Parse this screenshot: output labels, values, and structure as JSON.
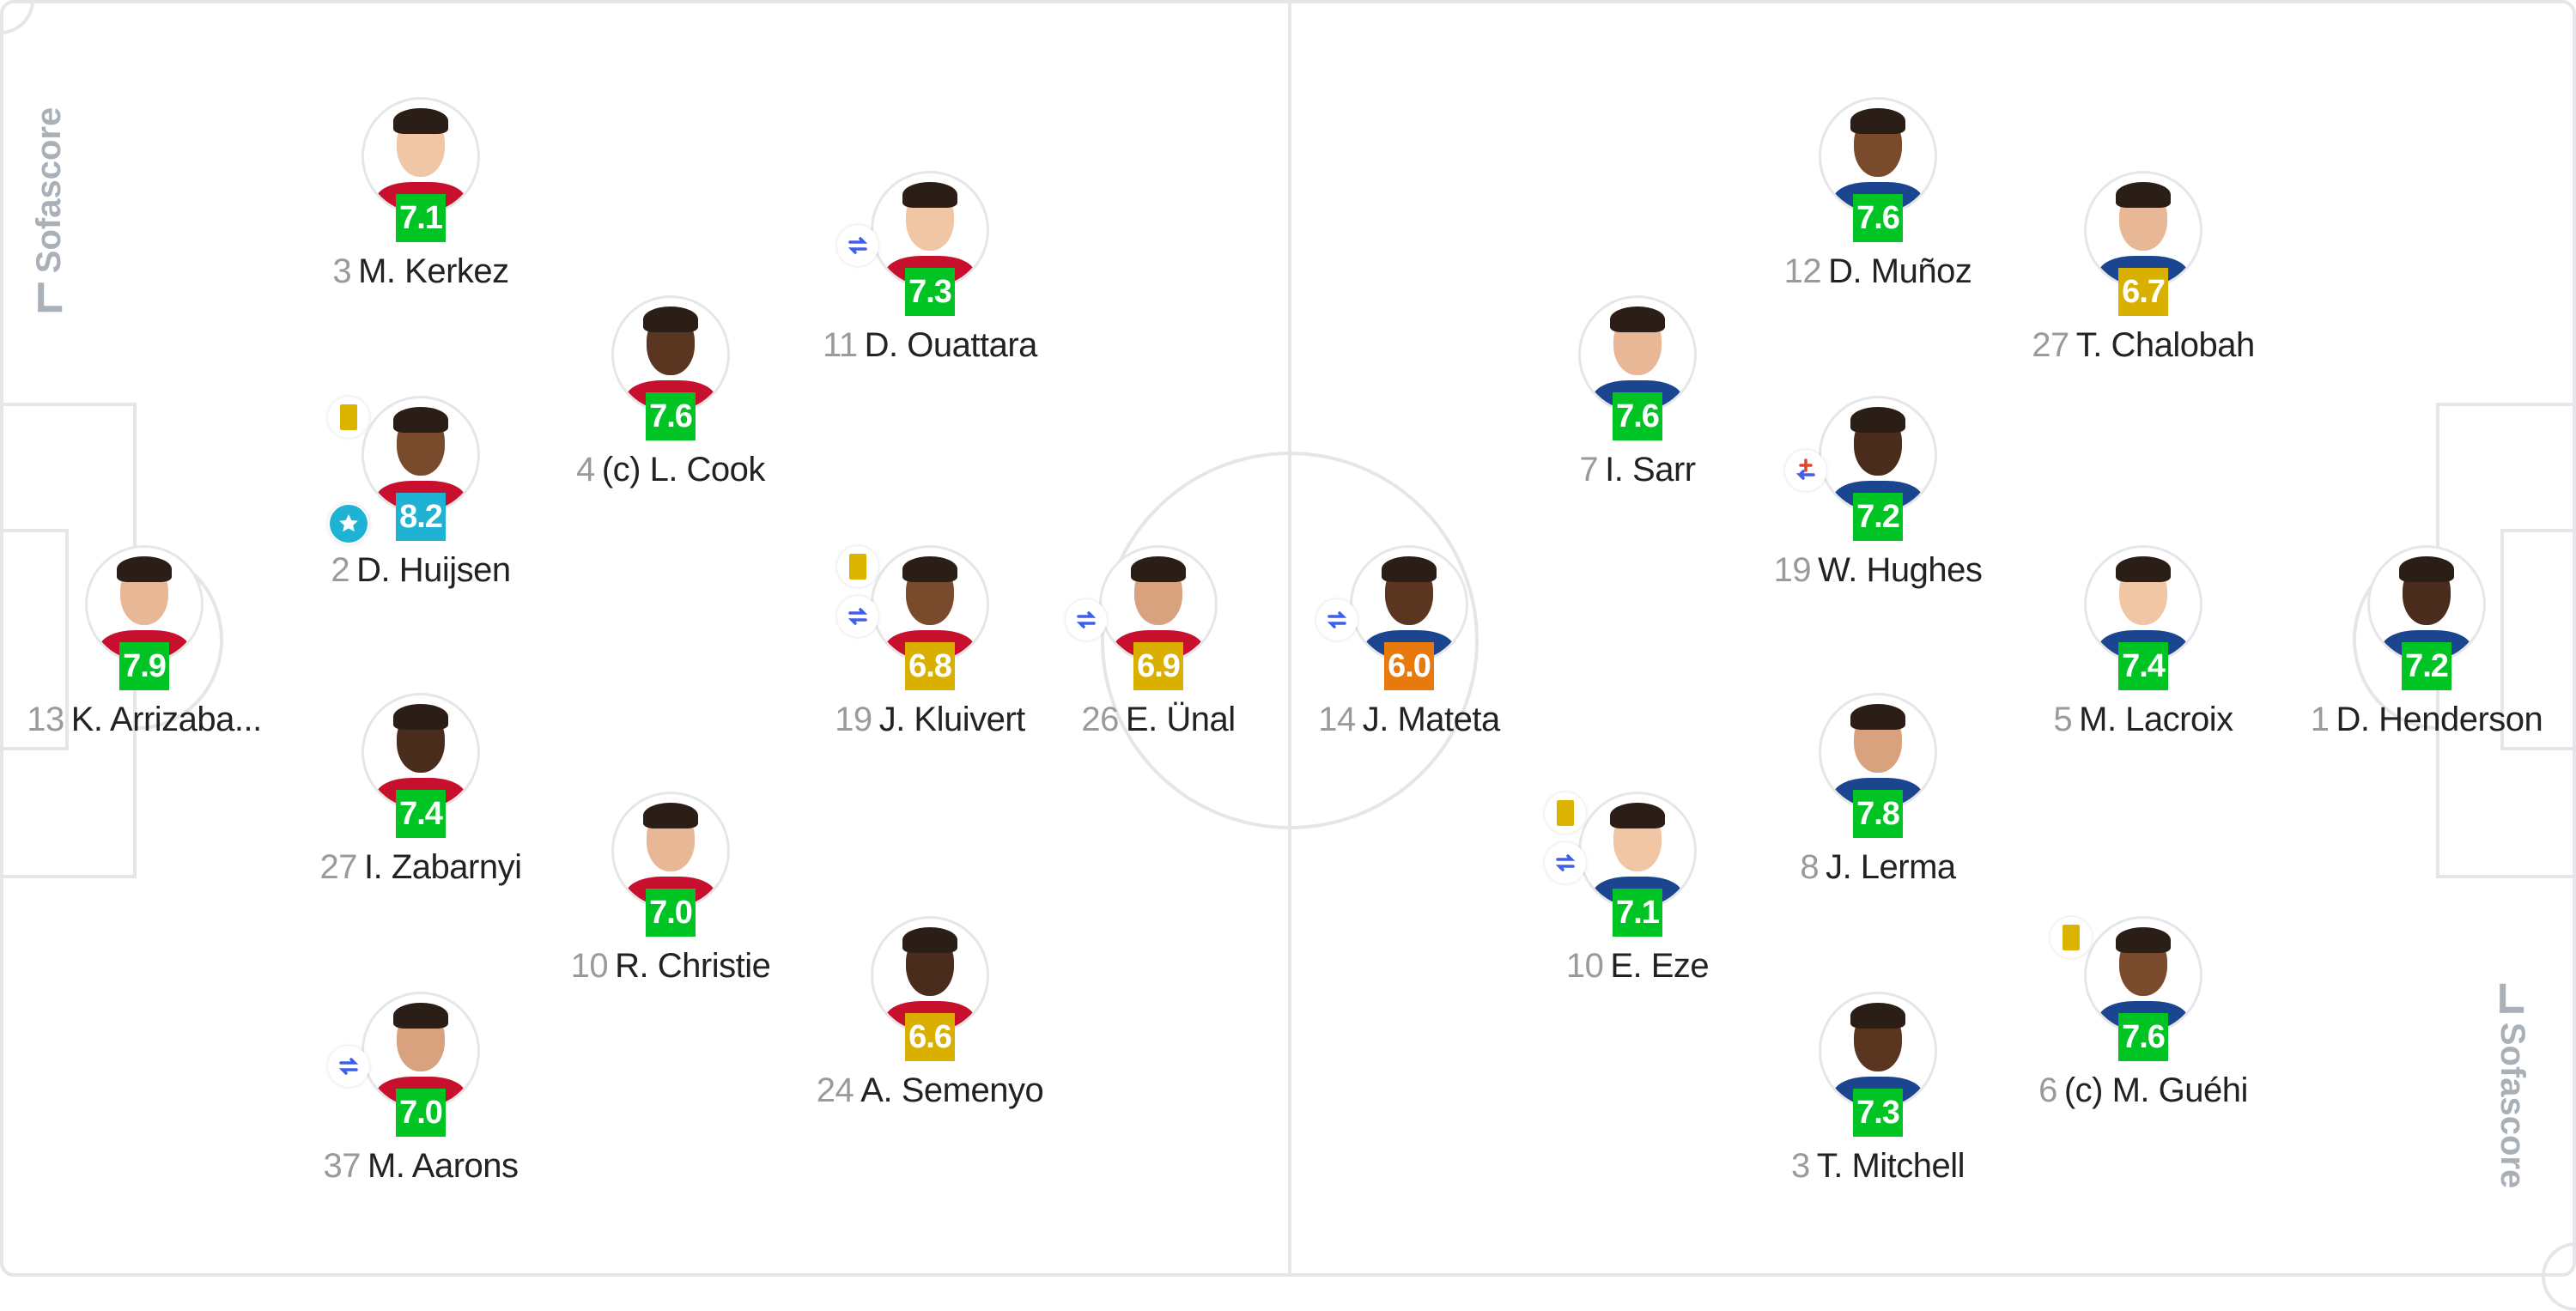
{
  "brand": "Sofascore",
  "colors": {
    "green": "#00c424",
    "blue": "#1eb3d4",
    "yellow": "#d9b000",
    "orange": "#e8790c",
    "line": "#e4e6ea"
  },
  "teams": [
    {
      "side": "home",
      "skin_shirt": "#c8102e",
      "players": [
        {
          "number": "13",
          "name": "K. Arrizaba...",
          "rating": "7.9",
          "rating_color": "green",
          "events": []
        },
        {
          "number": "3",
          "name": "M. Kerkez",
          "rating": "7.1",
          "rating_color": "green",
          "events": []
        },
        {
          "number": "2",
          "name": "D. Huijsen",
          "rating": "8.2",
          "rating_color": "blue",
          "events": [
            "yellow-card",
            "player-of-match"
          ]
        },
        {
          "number": "27",
          "name": "I. Zabarnyi",
          "rating": "7.4",
          "rating_color": "green",
          "events": []
        },
        {
          "number": "37",
          "name": "M. Aarons",
          "rating": "7.0",
          "rating_color": "green",
          "events": [
            "substitution"
          ]
        },
        {
          "number": "4",
          "name": "(c) L. Cook",
          "rating": "7.6",
          "rating_color": "green",
          "events": []
        },
        {
          "number": "10",
          "name": "R. Christie",
          "rating": "7.0",
          "rating_color": "green",
          "events": []
        },
        {
          "number": "11",
          "name": "D. Ouattara",
          "rating": "7.3",
          "rating_color": "green",
          "events": [
            "substitution"
          ]
        },
        {
          "number": "19",
          "name": "J. Kluivert",
          "rating": "6.8",
          "rating_color": "yellow",
          "events": [
            "yellow-card",
            "substitution"
          ]
        },
        {
          "number": "24",
          "name": "A. Semenyo",
          "rating": "6.6",
          "rating_color": "yellow",
          "events": []
        },
        {
          "number": "26",
          "name": "E. Ünal",
          "rating": "6.9",
          "rating_color": "yellow",
          "events": [
            "substitution"
          ]
        }
      ]
    },
    {
      "side": "away",
      "players": [
        {
          "number": "14",
          "name": "J. Mateta",
          "rating": "6.0",
          "rating_color": "orange",
          "events": [
            "substitution"
          ]
        },
        {
          "number": "7",
          "name": "I. Sarr",
          "rating": "7.6",
          "rating_color": "green",
          "events": []
        },
        {
          "number": "10",
          "name": "E. Eze",
          "rating": "7.1",
          "rating_color": "green",
          "events": [
            "yellow-card",
            "substitution"
          ]
        },
        {
          "number": "12",
          "name": "D. Muñoz",
          "rating": "7.6",
          "rating_color": "green",
          "events": []
        },
        {
          "number": "19",
          "name": "W. Hughes",
          "rating": "7.2",
          "rating_color": "green",
          "events": [
            "injury-substitution"
          ]
        },
        {
          "number": "8",
          "name": "J. Lerma",
          "rating": "7.8",
          "rating_color": "green",
          "events": []
        },
        {
          "number": "3",
          "name": "T. Mitchell",
          "rating": "7.3",
          "rating_color": "green",
          "events": []
        },
        {
          "number": "27",
          "name": "T. Chalobah",
          "rating": "6.7",
          "rating_color": "yellow",
          "events": []
        },
        {
          "number": "5",
          "name": "M. Lacroix",
          "rating": "7.4",
          "rating_color": "green",
          "events": []
        },
        {
          "number": "6",
          "name": "(c) M. Guéhi",
          "rating": "7.6",
          "rating_color": "green",
          "events": [
            "yellow-card"
          ]
        },
        {
          "number": "1",
          "name": "D. Henderson",
          "rating": "7.2",
          "rating_color": "green",
          "events": []
        }
      ]
    }
  ]
}
